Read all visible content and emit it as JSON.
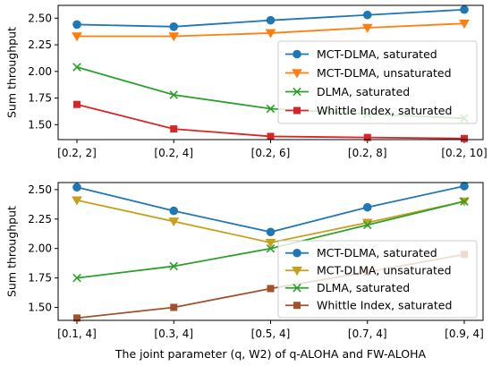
{
  "chart_data": [
    {
      "type": "line",
      "categories": [
        "[0.2, 2]",
        "[0.2, 4]",
        "[0.2, 6]",
        "[0.2, 8]",
        "[0.2, 10]"
      ],
      "ylabel": "Sum throughput",
      "xlabel": "",
      "ylim": [
        1.36,
        2.62
      ],
      "yticks": [
        1.5,
        1.75,
        2.0,
        2.25,
        2.5
      ],
      "ytick_labels": [
        "1.50",
        "1.75",
        "2.00",
        "2.25",
        "2.50"
      ],
      "legend_position": "center-right",
      "series": [
        {
          "name": "MCT-DLMA, saturated",
          "color": "#1f77b4",
          "marker": "circle",
          "values": [
            2.44,
            2.42,
            2.48,
            2.53,
            2.58
          ]
        },
        {
          "name": "MCT-DLMA, unsaturated",
          "color": "#ff7f0e",
          "marker": "triangle-down",
          "values": [
            2.33,
            2.33,
            2.36,
            2.41,
            2.45
          ]
        },
        {
          "name": "DLMA, saturated",
          "color": "#2ca02c",
          "marker": "x",
          "values": [
            2.04,
            1.78,
            1.65,
            1.6,
            1.56
          ]
        },
        {
          "name": "Whittle Index, saturated",
          "color": "#d62728",
          "marker": "square",
          "values": [
            1.69,
            1.46,
            1.39,
            1.38,
            1.37
          ]
        }
      ]
    },
    {
      "type": "line",
      "categories": [
        "[0.1, 4]",
        "[0.3, 4]",
        "[0.5, 4]",
        "[0.7, 4]",
        "[0.9, 4]"
      ],
      "ylabel": "Sum throughput",
      "xlabel": "The joint parameter (q, W2) of q-ALOHA and FW-ALOHA",
      "ylim": [
        1.39,
        2.56
      ],
      "yticks": [
        1.5,
        1.75,
        2.0,
        2.25,
        2.5
      ],
      "ytick_labels": [
        "1.50",
        "1.75",
        "2.00",
        "2.25",
        "2.50"
      ],
      "legend_position": "lower-right",
      "series": [
        {
          "name": "MCT-DLMA, saturated",
          "color": "#1f77b4",
          "marker": "circle",
          "values": [
            2.52,
            2.32,
            2.14,
            2.35,
            2.53
          ]
        },
        {
          "name": "MCT-DLMA, unsaturated",
          "color": "#c8a11c",
          "marker": "triangle-down",
          "values": [
            2.41,
            2.23,
            2.05,
            2.22,
            2.4
          ]
        },
        {
          "name": "DLMA, saturated",
          "color": "#2ca02c",
          "marker": "x",
          "values": [
            1.75,
            1.85,
            2.0,
            2.2,
            2.4
          ]
        },
        {
          "name": "Whittle Index, saturated",
          "color": "#a0522d",
          "marker": "square",
          "values": [
            1.41,
            1.5,
            1.66,
            1.8,
            1.95
          ]
        }
      ]
    }
  ]
}
